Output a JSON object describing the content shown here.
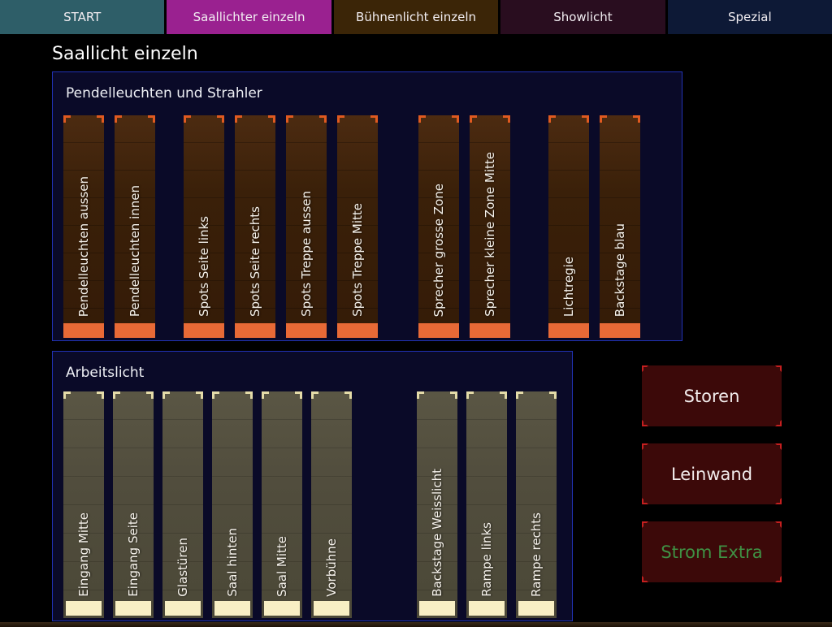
{
  "tabs": [
    {
      "label": "START",
      "bg": "#2e5e68"
    },
    {
      "label": "Saallichter einzeln",
      "bg": "#9a2190"
    },
    {
      "label": "Bühnenlicht einzeln",
      "bg": "#3b2507"
    },
    {
      "label": "Showlicht",
      "bg": "#290d1f"
    },
    {
      "label": "Spezial",
      "bg": "#0d1936"
    }
  ],
  "heading": "Saallicht einzeln",
  "panels": [
    {
      "id": "pendel",
      "title": "Pendelleuchten und Strahler",
      "fill_color": "#e86a36",
      "groups": [
        [
          "Pendelleuchten aussen",
          "Pendelleuchten innen"
        ],
        [
          "Spots Seite links",
          "Spots Seite rechts",
          "Spots Treppe aussen",
          "Spots Treppe Mitte"
        ],
        [
          "Sprecher grosse Zone",
          "Sprecher kleine Zone Mitte"
        ],
        [
          "Lichtregie",
          "Backstage blau"
        ]
      ]
    },
    {
      "id": "arbeit",
      "title": "Arbeitslicht",
      "fill_color": "#f8efc4",
      "groups": [
        [
          "Eingang Mitte",
          "Eingang Seite",
          "Glastüren",
          "Saal hinten",
          "Saal Mitte",
          "Vorbühne"
        ],
        [
          "Backstage Weisslicht",
          "Rampe links",
          "Rampe rechts"
        ]
      ]
    }
  ],
  "buttons": [
    {
      "label": "Storen",
      "text_color": "#f2ecec"
    },
    {
      "label": "Leinwand",
      "text_color": "#f2ecec"
    },
    {
      "label": "Strom Extra",
      "text_color": "#3f9144"
    }
  ]
}
